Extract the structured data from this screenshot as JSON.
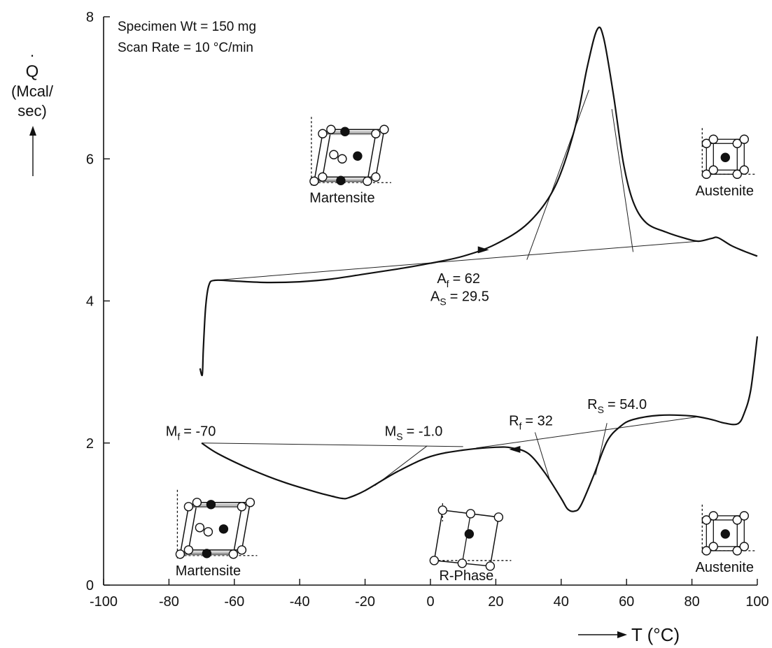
{
  "chart_data": {
    "type": "line",
    "notes": [
      "Specimen Wt = 150 mg",
      "Scan Rate = 10 °C/min"
    ],
    "ylabel": {
      "symbol": "Q",
      "unit_line1": "(Mcal/",
      "unit_line2": "sec)"
    },
    "xlabel": {
      "prefix": "T (",
      "unit": "°C",
      "suffix": ")"
    },
    "xlim": [
      -100,
      100
    ],
    "ylim": [
      0,
      8
    ],
    "xticks": [
      -100,
      -80,
      -60,
      -40,
      -20,
      0,
      20,
      40,
      60,
      80,
      100
    ],
    "yticks": [
      0,
      2,
      4,
      6,
      8
    ],
    "grid": false,
    "series": [
      {
        "name": "",
        "direction": "heating",
        "points": [
          [
            -70.5,
            3.05
          ],
          [
            -69.8,
            2.96
          ],
          [
            -69.5,
            3.3
          ],
          [
            -68.8,
            3.9
          ],
          [
            -67.8,
            4.22
          ],
          [
            -66,
            4.29
          ],
          [
            -60,
            4.28
          ],
          [
            -50,
            4.26
          ],
          [
            -40,
            4.27
          ],
          [
            -30,
            4.31
          ],
          [
            -20,
            4.38
          ],
          [
            -10,
            4.45
          ],
          [
            0,
            4.53
          ],
          [
            10,
            4.63
          ],
          [
            20,
            4.8
          ],
          [
            30,
            5.1
          ],
          [
            38,
            5.6
          ],
          [
            44,
            6.4
          ],
          [
            48,
            7.3
          ],
          [
            51,
            7.82
          ],
          [
            53,
            7.7
          ],
          [
            56,
            6.9
          ],
          [
            59,
            5.95
          ],
          [
            62,
            5.4
          ],
          [
            66,
            5.1
          ],
          [
            72,
            4.97
          ],
          [
            78,
            4.88
          ],
          [
            82,
            4.84
          ],
          [
            86,
            4.88
          ],
          [
            88,
            4.89
          ],
          [
            92,
            4.78
          ],
          [
            96,
            4.7
          ],
          [
            100,
            4.63
          ]
        ]
      },
      {
        "name": "",
        "direction": "cooling",
        "points": [
          [
            -70,
            2.0
          ],
          [
            -65,
            1.85
          ],
          [
            -55,
            1.63
          ],
          [
            -45,
            1.45
          ],
          [
            -35,
            1.31
          ],
          [
            -30,
            1.25
          ],
          [
            -27,
            1.22
          ],
          [
            -25,
            1.23
          ],
          [
            -20,
            1.33
          ],
          [
            -10,
            1.6
          ],
          [
            0,
            1.81
          ],
          [
            10,
            1.9
          ],
          [
            20,
            1.94
          ],
          [
            25,
            1.93
          ],
          [
            30,
            1.85
          ],
          [
            35,
            1.58
          ],
          [
            40,
            1.22
          ],
          [
            42,
            1.07
          ],
          [
            44,
            1.04
          ],
          [
            46,
            1.12
          ],
          [
            50,
            1.55
          ],
          [
            54,
            2.02
          ],
          [
            58,
            2.23
          ],
          [
            62,
            2.33
          ],
          [
            70,
            2.39
          ],
          [
            80,
            2.38
          ],
          [
            86,
            2.33
          ],
          [
            90,
            2.28
          ],
          [
            94,
            2.27
          ],
          [
            96,
            2.42
          ],
          [
            98,
            2.75
          ],
          [
            100,
            3.5
          ]
        ]
      }
    ],
    "construction_lines": [
      [
        [
          -66,
          4.29
        ],
        [
          82,
          4.84
        ]
      ],
      [
        [
          29.5,
          4.58
        ],
        [
          48.5,
          6.97
        ]
      ],
      [
        [
          62,
          4.69
        ],
        [
          55.5,
          6.7
        ]
      ],
      [
        [
          -70,
          2.0
        ],
        [
          10,
          1.95
        ]
      ],
      [
        [
          -1,
          1.96
        ],
        [
          -17,
          1.4
        ]
      ],
      [
        [
          14,
          1.93
        ],
        [
          82,
          2.37
        ]
      ],
      [
        [
          32,
          2.15
        ],
        [
          36.5,
          1.48
        ]
      ],
      [
        [
          54,
          2.28
        ],
        [
          50.5,
          1.55
        ]
      ]
    ],
    "annotations": [
      {
        "label": "A",
        "sub": "S",
        "value": "= 29.5",
        "x": 29.5,
        "y": 4.58,
        "dx": 0,
        "dy": 4.0
      },
      {
        "label": "A",
        "sub": "f",
        "value": "= 62",
        "x": 62,
        "y": 4.69,
        "dx": 2,
        "dy": 4.25
      },
      {
        "label": "M",
        "sub": "f",
        "value": "= -70",
        "x": -70,
        "y": 2.0,
        "dx": -81,
        "dy": 2.1
      },
      {
        "label": "M",
        "sub": "S",
        "value": "= -1.0",
        "x": -1,
        "y": 1.96,
        "dx": -14,
        "dy": 2.1
      },
      {
        "label": "R",
        "sub": "f",
        "value": "= 32",
        "x": 32,
        "y": 2.15,
        "dx": 24,
        "dy": 2.25
      },
      {
        "label": "R",
        "sub": "S",
        "value": "= 54.0",
        "x": 54,
        "y": 2.28,
        "dx": 48,
        "dy": 2.48
      }
    ],
    "arrows": [
      {
        "x": 16,
        "y": 4.72,
        "dir": "right"
      },
      {
        "x": 26,
        "y": 1.91,
        "dir": "left"
      }
    ],
    "phase_insets": [
      {
        "label": "Martensite",
        "kind": "martensite",
        "x": -27,
        "y": 6.0
      },
      {
        "label": "Austenite",
        "kind": "austenite",
        "x": 90,
        "y": 6.0
      },
      {
        "label": "Martensite",
        "kind": "martensite",
        "x": -68,
        "y": 0.75
      },
      {
        "label": "R-Phase",
        "kind": "rphase",
        "x": 11,
        "y": 0.72
      },
      {
        "label": "Austenite",
        "kind": "austenite",
        "x": 90,
        "y": 0.7
      }
    ]
  }
}
